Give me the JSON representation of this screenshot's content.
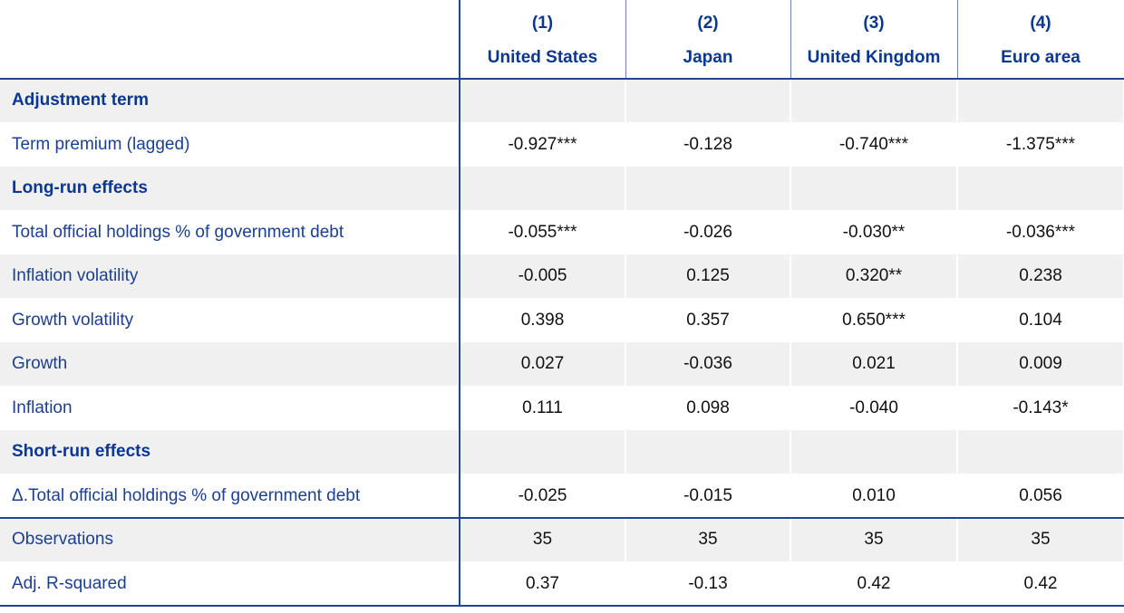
{
  "table": {
    "columns": [
      {
        "number": "(1)",
        "name": "United States"
      },
      {
        "number": "(2)",
        "name": "Japan"
      },
      {
        "number": "(3)",
        "name": "United Kingdom"
      },
      {
        "number": "(4)",
        "name": "Euro area"
      }
    ],
    "rows": [
      {
        "label": "Adjustment term"
      },
      {
        "label": "Term premium (lagged)",
        "values": [
          "-0.927***",
          "-0.128",
          "-0.740***",
          "-1.375***"
        ]
      },
      {
        "label": "Long-run effects"
      },
      {
        "label": "Total official holdings % of government debt",
        "values": [
          "-0.055***",
          "-0.026",
          "-0.030**",
          "-0.036***"
        ]
      },
      {
        "label": "Inflation volatility",
        "values": [
          "-0.005",
          "0.125",
          "0.320**",
          "0.238"
        ]
      },
      {
        "label": "Growth volatility",
        "values": [
          "0.398",
          "0.357",
          "0.650***",
          "0.104"
        ]
      },
      {
        "label": "Growth",
        "values": [
          "0.027",
          "-0.036",
          "0.021",
          "0.009"
        ]
      },
      {
        "label": "Inflation",
        "values": [
          "0.111",
          "0.098",
          "-0.040",
          "-0.143*"
        ]
      },
      {
        "label": "Short-run effects"
      },
      {
        "label": "Δ.Total official holdings % of government debt",
        "values": [
          "-0.025",
          "-0.015",
          "0.010",
          "0.056"
        ]
      }
    ],
    "footer_rows": [
      {
        "label": "Observations",
        "values": [
          "35",
          "35",
          "35",
          "35"
        ]
      },
      {
        "label": "Adj. R-squared",
        "values": [
          "0.37",
          "-0.13",
          "0.42",
          "0.42"
        ]
      }
    ]
  }
}
